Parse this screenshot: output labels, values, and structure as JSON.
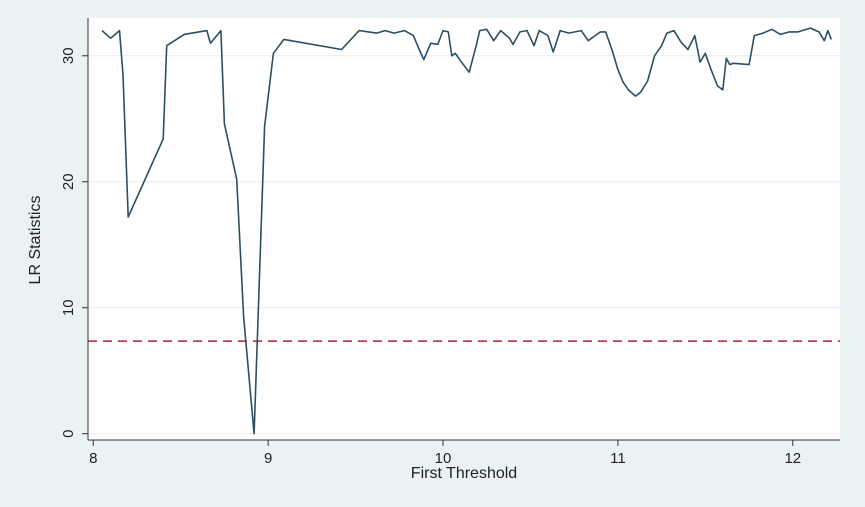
{
  "chart_data": {
    "type": "line",
    "title": "",
    "xlabel": "First Threshold",
    "ylabel": "LR Statistics",
    "xlim": [
      7.97,
      12.27
    ],
    "ylim": [
      -0.5,
      33
    ],
    "xticks": [
      8,
      9,
      10,
      11,
      12
    ],
    "yticks": [
      0,
      10,
      20,
      30
    ],
    "grid": "horizontal",
    "legend": "none",
    "colors": {
      "line": "#2b4f64",
      "critical": "#b2222d",
      "plot_bg": "#ffffff",
      "outer_bg": "#eaf2f3",
      "grid": "#e6ecef"
    },
    "critical_value": {
      "y": 7.35,
      "style": "dashed"
    },
    "series": [
      {
        "x": [
          8.05,
          8.1,
          8.15,
          8.17,
          8.2,
          8.4,
          8.42,
          8.52,
          8.65,
          8.67,
          8.73,
          8.75,
          8.82,
          8.86,
          8.92,
          8.98,
          9.03,
          9.09,
          9.42,
          9.52,
          9.62,
          9.67,
          9.72,
          9.78,
          9.83,
          9.87,
          9.89,
          9.93,
          9.97,
          10.0,
          10.03,
          10.05,
          10.07,
          10.1,
          10.15,
          10.19,
          10.21,
          10.25,
          10.29,
          10.33,
          10.38,
          10.4,
          10.44,
          10.48,
          10.52,
          10.55,
          10.6,
          10.63,
          10.67,
          10.72,
          10.79,
          10.83,
          10.86,
          10.9,
          10.93,
          10.97,
          11.0,
          11.03,
          11.06,
          11.1,
          11.13,
          11.17,
          11.21,
          11.25,
          11.28,
          11.32,
          11.36,
          11.4,
          11.44,
          11.47,
          11.5,
          11.53,
          11.57,
          11.6,
          11.62,
          11.64,
          11.66,
          11.75,
          11.78,
          11.83,
          11.88,
          11.93,
          11.98,
          12.03,
          12.1,
          12.15,
          12.18,
          12.2,
          12.22
        ],
        "y": [
          32.0,
          31.4,
          32.0,
          28.5,
          17.2,
          23.4,
          30.8,
          31.7,
          32.0,
          31.0,
          32.0,
          24.6,
          20.2,
          9.3,
          0.0,
          24.4,
          30.2,
          31.3,
          30.5,
          32.0,
          31.8,
          32.0,
          31.8,
          32.0,
          31.6,
          30.3,
          29.7,
          31.0,
          30.9,
          32.0,
          31.9,
          30.0,
          30.2,
          29.6,
          28.7,
          30.8,
          32.0,
          32.1,
          31.2,
          32.0,
          31.4,
          30.9,
          31.9,
          32.0,
          30.8,
          32.0,
          31.6,
          30.3,
          32.0,
          31.8,
          32.0,
          31.2,
          31.5,
          31.9,
          31.9,
          30.3,
          28.9,
          27.9,
          27.3,
          26.8,
          27.1,
          28.0,
          30.0,
          30.8,
          31.8,
          32.0,
          31.1,
          30.5,
          31.6,
          29.5,
          30.2,
          29.0,
          27.6,
          27.3,
          29.8,
          29.3,
          29.4,
          29.3,
          31.6,
          31.8,
          32.1,
          31.7,
          31.9,
          31.9,
          32.2,
          31.9,
          31.2,
          32.0,
          31.3
        ]
      }
    ]
  }
}
